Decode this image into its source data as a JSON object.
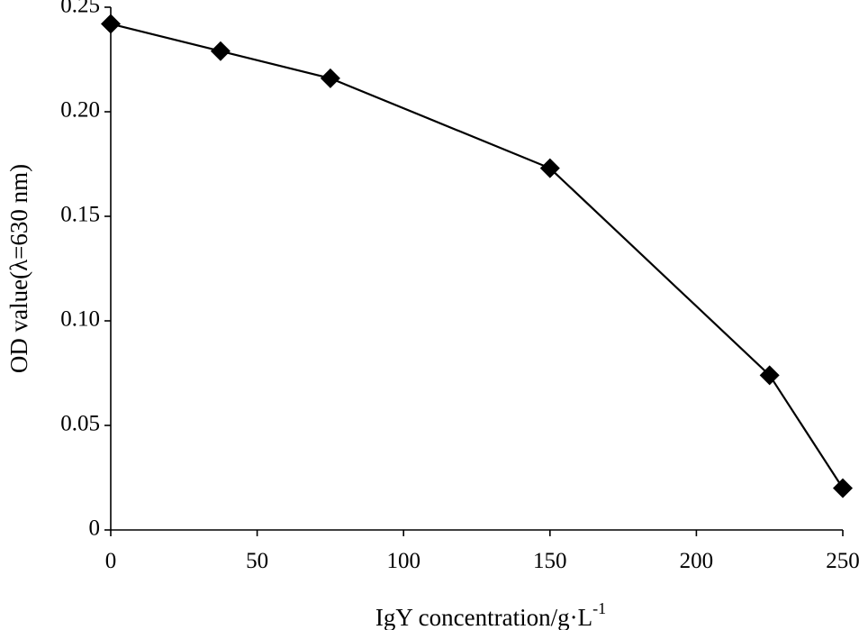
{
  "chart_data": {
    "type": "line",
    "title": "",
    "xlabel": "IgY concentration/g·L",
    "xlabel_superscript": "-1",
    "ylabel": "OD value(λ=630 nm)",
    "xlim": [
      0,
      250
    ],
    "ylim": [
      0,
      0.25
    ],
    "xticks": [
      0,
      50,
      100,
      150,
      200,
      250
    ],
    "xtick_labels": [
      "0",
      "50",
      "100",
      "150",
      "200",
      "250"
    ],
    "yticks": [
      0,
      0.05,
      0.1,
      0.15,
      0.2,
      0.25
    ],
    "ytick_labels": [
      "0",
      "0.05",
      "0.10",
      "0.15",
      "0.20",
      "0.25"
    ],
    "grid": false,
    "legend": "none",
    "marker": "diamond",
    "series": [
      {
        "x": [
          0,
          37.5,
          75,
          150,
          225,
          250
        ],
        "y": [
          0.242,
          0.229,
          0.216,
          0.173,
          0.074,
          0.02
        ],
        "color": "#000000"
      }
    ]
  }
}
